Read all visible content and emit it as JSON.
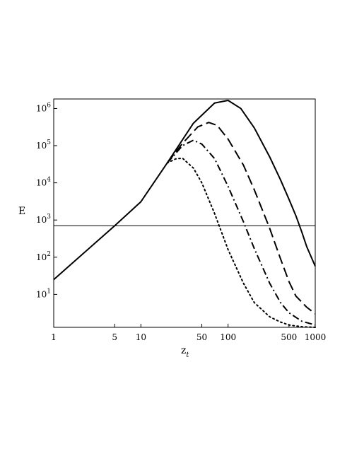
{
  "chart_data": {
    "type": "line",
    "title": "",
    "xlabel": "z",
    "xlabel_subscript": "t",
    "ylabel": "E",
    "x_scale": "log",
    "y_scale": "log",
    "xlim": [
      1,
      1000
    ],
    "ylim": [
      1.3,
      1800000
    ],
    "grid": false,
    "x_ticks": [
      {
        "value": 1,
        "label": "1"
      },
      {
        "value": 5,
        "label": "5"
      },
      {
        "value": 10,
        "label": "10"
      },
      {
        "value": 50,
        "label": "50"
      },
      {
        "value": 100,
        "label": "100"
      },
      {
        "value": 500,
        "label": "500"
      },
      {
        "value": 1000,
        "label": "1000"
      }
    ],
    "y_ticks": [
      {
        "value": 10,
        "base": "10",
        "exp": "1"
      },
      {
        "value": 100,
        "base": "10",
        "exp": "2"
      },
      {
        "value": 1000,
        "base": "10",
        "exp": "3"
      },
      {
        "value": 10000,
        "base": "10",
        "exp": "4"
      },
      {
        "value": 100000,
        "base": "10",
        "exp": "5"
      },
      {
        "value": 1000000,
        "base": "10",
        "exp": "6"
      }
    ],
    "hline": {
      "y": 700,
      "style": "solid"
    },
    "series": [
      {
        "style": "solid",
        "x": [
          1,
          5,
          10,
          20,
          40,
          70,
          100,
          140,
          200,
          300,
          400,
          500,
          600,
          700,
          800,
          1000
        ],
        "y": [
          25,
          700,
          3100,
          34000,
          400000,
          1400000,
          1650000,
          1000000,
          300000,
          50000,
          12000,
          3600,
          1300,
          480,
          190,
          57
        ]
      },
      {
        "style": "dashed",
        "x": [
          20,
          30,
          45,
          60,
          75,
          100,
          150,
          200,
          300,
          400,
          500,
          600,
          800,
          1000
        ],
        "y": [
          34000,
          115000,
          320000,
          420000,
          350000,
          150000,
          30000,
          6500,
          600,
          90,
          22,
          9,
          4.5,
          3
        ]
      },
      {
        "style": "dashdot",
        "x": [
          20,
          30,
          40,
          50,
          70,
          100,
          150,
          200,
          300,
          400,
          500,
          700,
          1000
        ],
        "y": [
          34000,
          100000,
          140000,
          110000,
          45000,
          8000,
          900,
          170,
          20,
          6,
          3.2,
          1.9,
          1.5
        ]
      },
      {
        "style": "dotted",
        "x": [
          20,
          25,
          30,
          40,
          50,
          70,
          100,
          150,
          200,
          300,
          400,
          500,
          700,
          1000
        ],
        "y": [
          34000,
          44000,
          46000,
          25000,
          10000,
          1500,
          160,
          20,
          6,
          2.5,
          1.8,
          1.5,
          1.35,
          1.3
        ]
      }
    ]
  }
}
